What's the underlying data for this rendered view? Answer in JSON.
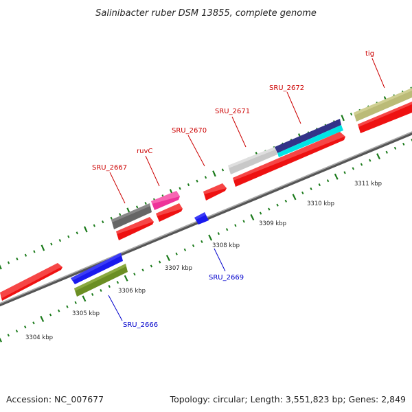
{
  "title": "Salinibacter ruber DSM 13855, complete genome",
  "footer": {
    "accession": "Accession: NC_007677",
    "stats": "Topology: circular; Length: 3,551,823 bp; Genes: 2,849"
  },
  "colors": {
    "forward_label": "#cc0000",
    "reverse_label": "#0000cc",
    "tick": "#1a7a1a",
    "backbone": "#888888"
  },
  "scale": {
    "tick_labels": [
      "3304 kbp",
      "3305 kbp",
      "3306 kbp",
      "3307 kbp",
      "3308 kbp",
      "3309 kbp",
      "3310 kbp",
      "3311 kbp"
    ]
  },
  "genes": [
    {
      "name": "SRU_2666",
      "strand": "reverse",
      "labeled": true,
      "orf_color": "#1a1aee",
      "feature_color": "#6b8e23"
    },
    {
      "name": "SRU_2667",
      "strand": "forward",
      "labeled": true,
      "orf_color": "#ee1111",
      "feature_color": "#666666"
    },
    {
      "name": "ruvC",
      "strand": "forward",
      "labeled": true,
      "orf_color": "#ee1111",
      "feature_color": "#ee3399"
    },
    {
      "name": "SRU_2669",
      "strand": "reverse",
      "labeled": true,
      "orf_color": "#1a1aee",
      "feature_color": ""
    },
    {
      "name": "SRU_2670",
      "strand": "forward",
      "labeled": true,
      "orf_color": "#ee1111",
      "feature_color": ""
    },
    {
      "name": "SRU_2671",
      "strand": "forward",
      "labeled": true,
      "orf_color": "#ee1111",
      "feature_color": "#c8c8c8"
    },
    {
      "name": "SRU_2672",
      "strand": "forward",
      "labeled": true,
      "orf_color": "#ee1111",
      "feature_color": "#333388"
    },
    {
      "name": "tig",
      "strand": "forward",
      "labeled": true,
      "orf_color": "#ee1111",
      "feature_color": "#bbbb77"
    },
    {
      "name": "",
      "strand": "forward",
      "labeled": false,
      "orf_color": "#ee1111",
      "feature_color": ""
    }
  ]
}
